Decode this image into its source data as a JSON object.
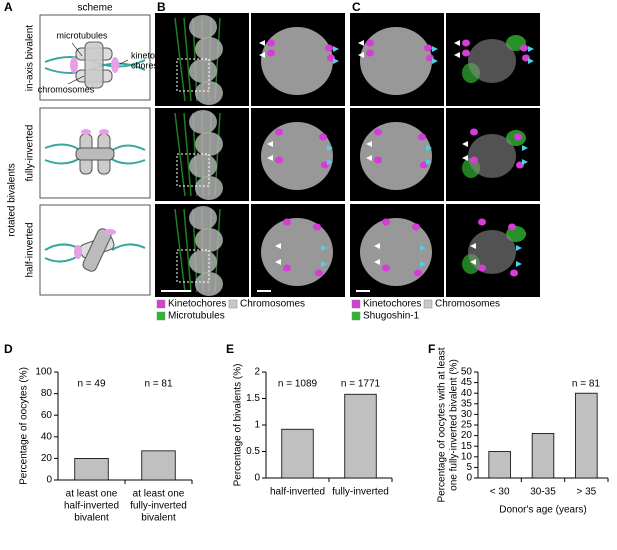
{
  "figure": {
    "panel_labels": [
      "A",
      "B",
      "C"
    ],
    "scheme_title": "scheme",
    "scheme_labels": [
      "microtubules",
      "chromosomes",
      "kineto-",
      "chores"
    ],
    "row_labels": [
      "in-axis bivalent",
      "rotated bivalents",
      "fully-inverted",
      "half-inverted"
    ],
    "legend_b": [
      {
        "name": "Kinetochores",
        "color": "#d63cd6"
      },
      {
        "name": "Chromosomes",
        "color": "#c8c8c8"
      },
      {
        "name": "Microtubules",
        "color": "#2fb52f"
      }
    ],
    "legend_c": [
      {
        "name": "Kinetochores",
        "color": "#d63cd6"
      },
      {
        "name": "Chromosomes",
        "color": "#c8c8c8"
      },
      {
        "name": "Shugoshin-1",
        "color": "#2fb52f"
      }
    ]
  },
  "chart_data": [
    {
      "type": "bar",
      "label": "D",
      "ylabel": [
        "Percentage of oocytes (%)"
      ],
      "categories": [
        [
          "at least one",
          "half-inverted",
          "bivalent"
        ],
        [
          "at least one",
          "fully-inverted",
          "bivalent"
        ]
      ],
      "values": [
        20,
        27
      ],
      "color": "#c0c0c0",
      "annotations": [
        "n = 49",
        "n = 81"
      ],
      "ylim": [
        0,
        100
      ],
      "yticks": [
        0,
        20,
        40,
        60,
        80,
        100
      ]
    },
    {
      "type": "bar",
      "label": "E",
      "ylabel": [
        "Percentage of bivalents (%)"
      ],
      "categories": [
        [
          "half-inverted"
        ],
        [
          "fully-inverted"
        ]
      ],
      "values": [
        0.92,
        1.58
      ],
      "color": "#c0c0c0",
      "annotations": [
        "n = 1089",
        "n = 1771"
      ],
      "ylim": [
        0,
        2
      ],
      "yticks": [
        0,
        0.5,
        1,
        1.5,
        2
      ]
    },
    {
      "type": "bar",
      "label": "F",
      "ylabel": [
        "Percentage of oocytes with at least",
        "one fully-inverted bivalent (%)"
      ],
      "categories": [
        [
          "< 30"
        ],
        [
          "30-35"
        ],
        [
          "> 35"
        ]
      ],
      "values": [
        12.5,
        21,
        40
      ],
      "color": "#c0c0c0",
      "annotations": [
        "n = 81"
      ],
      "xlabel": "Donor's age (years)",
      "ylim": [
        0,
        50
      ],
      "yticks": [
        0,
        5,
        10,
        15,
        20,
        25,
        30,
        35,
        40,
        45,
        50
      ]
    }
  ]
}
